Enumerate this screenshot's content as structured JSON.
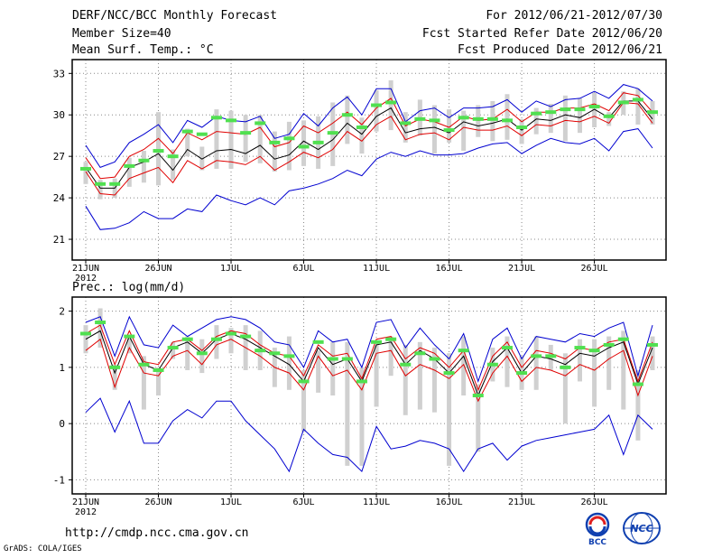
{
  "header": {
    "title": "DERF/NCC/BCC Monthly Forecast",
    "member": "Member Size=40",
    "variable": "Mean Surf. Temp.: °C",
    "period": "For 2012/06/21-2012/07/30",
    "refer": "Fcst Started Refer Date 2012/06/20",
    "produced": "Fcst Produced Date 2012/06/21"
  },
  "footer": {
    "url": "http://cmdp.ncc.cma.gov.cn",
    "credit": "GrADS: COLA/IGES",
    "logo_left_text": "BCC",
    "logo_right_text": "NCC"
  },
  "colors": {
    "ensemble_mean": "#000000",
    "spread": "#e00000",
    "extremes": "#0000d0",
    "box": "#d0d0d0",
    "observation": "#50e050"
  },
  "chart_data": [
    {
      "type": "line",
      "title": "Mean Surf. Temp.: °C",
      "x_tick_labels": [
        "21JUN",
        "26JUN",
        "1JUL",
        "6JUL",
        "11JUL",
        "16JUL",
        "21JUL",
        "26JUL"
      ],
      "x_tick_index": [
        0,
        5,
        10,
        15,
        20,
        25,
        30,
        35
      ],
      "year_label": "2012",
      "ylim": [
        19.5,
        34
      ],
      "yticks": [
        21,
        24,
        27,
        30,
        33
      ],
      "grid": true,
      "series": [
        {
          "name": "max",
          "values": [
            27.8,
            26.2,
            26.6,
            28.0,
            28.6,
            29.3,
            28.0,
            29.6,
            29.1,
            29.9,
            29.6,
            29.5,
            29.9,
            28.3,
            28.6,
            30.1,
            29.2,
            30.5,
            31.3,
            30.0,
            31.9,
            31.9,
            29.5,
            30.3,
            30.5,
            29.8,
            30.5,
            30.5,
            30.6,
            31.1,
            30.2,
            31.0,
            30.6,
            31.1,
            31.2,
            31.7,
            31.2,
            32.2,
            31.9,
            31.0
          ]
        },
        {
          "name": "mean_plus",
          "values": [
            26.9,
            25.4,
            25.5,
            27.0,
            27.5,
            28.3,
            27.2,
            28.7,
            28.2,
            28.8,
            28.7,
            28.6,
            29.1,
            27.7,
            28.0,
            29.2,
            28.7,
            29.4,
            30.2,
            29.3,
            30.5,
            31.2,
            29.2,
            29.7,
            29.5,
            29.1,
            29.9,
            29.6,
            29.7,
            30.4,
            29.5,
            30.2,
            30.2,
            30.5,
            30.5,
            30.8,
            30.3,
            31.6,
            31.4,
            30.2
          ]
        },
        {
          "name": "mean",
          "values": [
            26.2,
            24.7,
            24.7,
            26.2,
            26.6,
            27.2,
            26.0,
            27.5,
            26.8,
            27.4,
            27.5,
            27.2,
            27.8,
            26.8,
            27.1,
            28.1,
            27.5,
            28.2,
            29.4,
            28.6,
            29.9,
            30.5,
            28.7,
            29.0,
            29.1,
            28.7,
            29.5,
            29.2,
            29.4,
            29.7,
            28.9,
            29.7,
            29.6,
            30.0,
            29.8,
            30.4,
            29.8,
            31.0,
            31.0,
            29.7
          ]
        },
        {
          "name": "mean_minus",
          "values": [
            25.9,
            24.3,
            24.2,
            25.4,
            25.8,
            26.2,
            25.1,
            26.7,
            26.1,
            26.7,
            26.6,
            26.4,
            27.0,
            26.0,
            26.6,
            27.3,
            26.9,
            27.5,
            28.8,
            28.1,
            29.3,
            29.9,
            28.2,
            28.6,
            28.7,
            28.2,
            29.1,
            28.9,
            28.9,
            29.2,
            28.5,
            29.3,
            29.2,
            29.6,
            29.5,
            29.9,
            29.4,
            30.9,
            30.8,
            29.4
          ]
        },
        {
          "name": "min",
          "values": [
            23.4,
            21.7,
            21.8,
            22.2,
            23.0,
            22.5,
            22.5,
            23.2,
            23.0,
            24.2,
            23.8,
            23.5,
            24.0,
            23.5,
            24.5,
            24.7,
            25.0,
            25.4,
            26.0,
            25.6,
            26.8,
            27.3,
            27.0,
            27.4,
            27.1,
            27.1,
            27.2,
            27.6,
            27.9,
            28.0,
            27.2,
            27.8,
            28.3,
            28.0,
            27.9,
            28.3,
            27.4,
            28.8,
            29.0,
            27.6
          ]
        }
      ],
      "boxes": {
        "low": [
          25.0,
          23.9,
          24.0,
          24.8,
          25.1,
          24.9,
          25.3,
          27.0,
          26.0,
          26.1,
          26.1,
          26.6,
          26.5,
          25.9,
          26.0,
          26.3,
          26.1,
          26.3,
          27.9,
          27.2,
          28.8,
          28.9,
          28.0,
          28.5,
          27.2,
          28.0,
          27.4,
          28.4,
          28.1,
          28.2,
          27.9,
          28.6,
          28.7,
          28.1,
          28.7,
          29.1,
          29.2,
          30.0,
          29.3,
          29.3
        ],
        "high": [
          26.6,
          25.3,
          25.4,
          26.9,
          27.4,
          30.2,
          27.5,
          29.0,
          27.7,
          30.4,
          30.3,
          30.0,
          30.0,
          28.8,
          29.5,
          29.6,
          29.9,
          30.9,
          31.4,
          29.8,
          31.8,
          32.5,
          30.2,
          31.1,
          30.7,
          30.4,
          30.3,
          30.7,
          31.0,
          31.5,
          29.7,
          30.5,
          30.8,
          31.4,
          31.2,
          31.6,
          30.2,
          31.7,
          31.9,
          31.0
        ]
      },
      "observations": [
        26.1,
        25.0,
        25.0,
        26.3,
        26.7,
        27.4,
        27.0,
        28.8,
        28.6,
        29.8,
        29.6,
        28.7,
        29.4,
        28.0,
        28.3,
        27.7,
        28.0,
        28.7,
        30.0,
        29.1,
        30.7,
        30.9,
        29.4,
        29.7,
        29.6,
        28.9,
        29.8,
        29.7,
        29.7,
        29.6,
        29.1,
        30.1,
        30.2,
        30.4,
        30.4,
        30.6,
        29.9,
        30.9,
        31.1,
        30.2
      ]
    },
    {
      "type": "line",
      "title": "Prec.: log(mm/d)",
      "x_tick_labels": [
        "21JUN",
        "26JUN",
        "1JUL",
        "6JUL",
        "11JUL",
        "16JUL",
        "21JUL",
        "26JUL"
      ],
      "x_tick_index": [
        0,
        5,
        10,
        15,
        20,
        25,
        30,
        35
      ],
      "year_label": "2012",
      "ylim": [
        -1.25,
        2.25
      ],
      "yticks": [
        -1,
        0,
        1,
        2
      ],
      "grid": true,
      "series": [
        {
          "name": "max",
          "values": [
            1.8,
            1.9,
            1.2,
            1.9,
            1.4,
            1.35,
            1.75,
            1.55,
            1.7,
            1.85,
            1.9,
            1.85,
            1.7,
            1.45,
            1.4,
            1.0,
            1.65,
            1.45,
            1.5,
            1.0,
            1.8,
            1.85,
            1.35,
            1.7,
            1.4,
            1.15,
            1.6,
            0.75,
            1.5,
            1.7,
            1.15,
            1.55,
            1.5,
            1.45,
            1.6,
            1.55,
            1.7,
            1.8,
            0.85,
            1.75
          ]
        },
        {
          "name": "mean_plus",
          "values": [
            1.6,
            1.75,
            1.05,
            1.65,
            1.1,
            1.05,
            1.45,
            1.5,
            1.3,
            1.55,
            1.65,
            1.6,
            1.4,
            1.25,
            1.2,
            0.85,
            1.4,
            1.2,
            1.25,
            0.8,
            1.5,
            1.55,
            1.15,
            1.35,
            1.25,
            1.0,
            1.3,
            0.6,
            1.2,
            1.45,
            1.0,
            1.3,
            1.25,
            1.15,
            1.35,
            1.3,
            1.45,
            1.5,
            0.75,
            1.45
          ]
        },
        {
          "name": "mean",
          "values": [
            1.5,
            1.65,
            0.9,
            1.55,
            1.05,
            0.95,
            1.35,
            1.45,
            1.25,
            1.5,
            1.6,
            1.5,
            1.35,
            1.2,
            1.05,
            0.75,
            1.35,
            1.05,
            1.15,
            0.75,
            1.4,
            1.45,
            1.05,
            1.3,
            1.15,
            0.9,
            1.2,
            0.5,
            1.1,
            1.35,
            0.9,
            1.2,
            1.15,
            1.05,
            1.25,
            1.2,
            1.35,
            1.45,
            0.7,
            1.35
          ]
        },
        {
          "name": "mean_minus",
          "values": [
            1.3,
            1.5,
            0.65,
            1.35,
            0.9,
            0.85,
            1.2,
            1.3,
            1.05,
            1.4,
            1.5,
            1.35,
            1.2,
            1.0,
            0.9,
            0.6,
            1.2,
            0.85,
            0.95,
            0.6,
            1.25,
            1.3,
            0.85,
            1.05,
            0.95,
            0.8,
            1.05,
            0.4,
            0.9,
            1.2,
            0.75,
            1.0,
            0.95,
            0.85,
            1.05,
            0.95,
            1.15,
            1.3,
            0.5,
            1.2
          ]
        },
        {
          "name": "min",
          "values": [
            0.2,
            0.45,
            -0.15,
            0.4,
            -0.35,
            -0.35,
            0.05,
            0.25,
            0.1,
            0.4,
            0.4,
            0.05,
            -0.2,
            -0.45,
            -0.85,
            -0.1,
            -0.35,
            -0.55,
            -0.6,
            -0.85,
            -0.05,
            -0.45,
            -0.4,
            -0.3,
            -0.35,
            -0.45,
            -0.85,
            -0.45,
            -0.35,
            -0.65,
            -0.4,
            -0.3,
            -0.25,
            -0.2,
            -0.15,
            -0.1,
            0.15,
            -0.55,
            0.15,
            -0.1
          ]
        }
      ],
      "boxes": {
        "low": [
          1.25,
          1.35,
          0.6,
          1.25,
          0.25,
          0.5,
          1.15,
          0.95,
          0.9,
          1.15,
          1.25,
          0.95,
          0.95,
          0.65,
          0.6,
          -0.15,
          0.55,
          0.5,
          -0.75,
          -0.75,
          0.3,
          0.85,
          0.15,
          0.25,
          0.2,
          -0.75,
          0.5,
          -0.5,
          0.75,
          0.65,
          0.6,
          0.6,
          0.95,
          0.0,
          0.75,
          0.3,
          0.6,
          0.25,
          -0.3,
          0.95
        ],
        "high": [
          1.75,
          2.05,
          1.05,
          1.55,
          1.2,
          1.0,
          1.45,
          1.55,
          1.5,
          1.75,
          1.7,
          1.75,
          1.65,
          1.35,
          1.55,
          0.95,
          1.3,
          1.45,
          1.45,
          1.0,
          1.4,
          1.55,
          1.4,
          1.45,
          1.35,
          1.25,
          1.55,
          0.7,
          1.35,
          1.55,
          1.2,
          1.55,
          1.4,
          1.25,
          1.5,
          1.5,
          1.55,
          1.65,
          0.95,
          1.55
        ]
      },
      "observations": [
        1.6,
        1.8,
        1.0,
        1.55,
        1.05,
        0.95,
        1.35,
        1.5,
        1.25,
        1.5,
        1.6,
        1.55,
        1.3,
        1.25,
        1.2,
        0.75,
        1.45,
        1.15,
        1.15,
        0.75,
        1.45,
        1.5,
        1.05,
        1.25,
        1.15,
        0.9,
        1.3,
        0.5,
        1.05,
        1.35,
        0.9,
        1.2,
        1.2,
        1.0,
        1.35,
        1.3,
        1.4,
        1.5,
        0.7,
        1.4
      ]
    }
  ]
}
